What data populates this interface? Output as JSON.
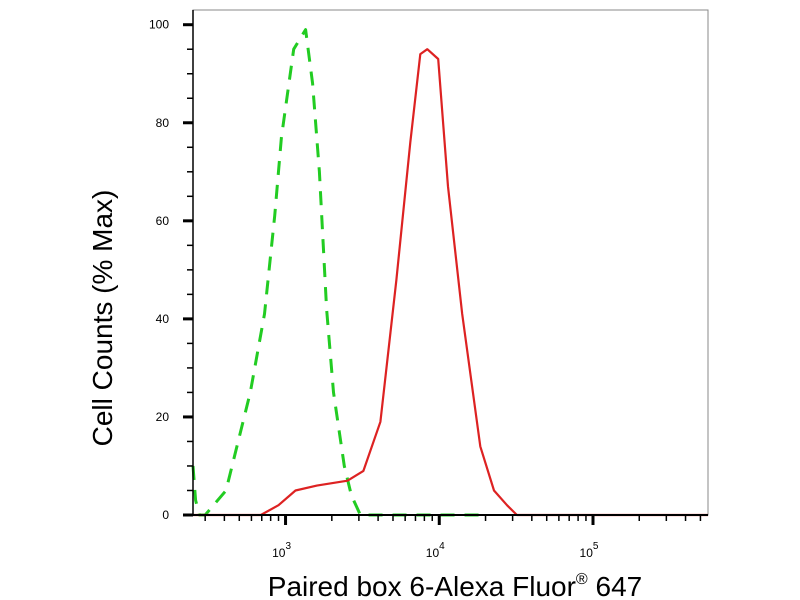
{
  "chart_data": {
    "type": "line",
    "title": "",
    "xlabel": "Paired box 6-Alexa Fluor",
    "xlabel_superscript": "®",
    "xlabel_suffix": " 647",
    "ylabel": "Cell Counts (% Max)",
    "xscale": "log",
    "xlim": [
      250,
      560000
    ],
    "ylim": [
      0,
      103
    ],
    "yticks": [
      0,
      20,
      40,
      60,
      80,
      100
    ],
    "xticks": [
      {
        "base": "10",
        "exp": "3",
        "value": 1000
      },
      {
        "base": "10",
        "exp": "4",
        "value": 10000
      },
      {
        "base": "10",
        "exp": "5",
        "value": 100000
      }
    ],
    "grid": false,
    "series": [
      {
        "color": "#22cc22",
        "style": "dashed",
        "x": [
          250,
          260,
          275,
          300,
          410,
          590,
          730,
          850,
          940,
          1130,
          1350,
          1500,
          1660,
          1850,
          2050,
          2410,
          2680,
          3070,
          5000,
          20000
        ],
        "y": [
          10,
          3,
          0,
          0,
          5,
          25,
          41,
          61,
          77,
          95,
          99,
          88,
          70,
          42,
          25,
          10,
          4,
          0,
          0,
          0
        ]
      },
      {
        "color": "#dd2222",
        "style": "solid",
        "x": [
          250,
          690,
          900,
          1160,
          1600,
          2530,
          3210,
          4140,
          5260,
          6480,
          7530,
          8360,
          9840,
          11400,
          14100,
          18500,
          22700,
          27600,
          32000,
          560000
        ],
        "y": [
          0,
          0,
          2,
          5,
          6,
          7,
          9,
          19,
          48,
          76,
          94,
          95,
          93,
          67,
          41,
          14,
          5,
          2,
          0,
          0
        ]
      }
    ]
  }
}
